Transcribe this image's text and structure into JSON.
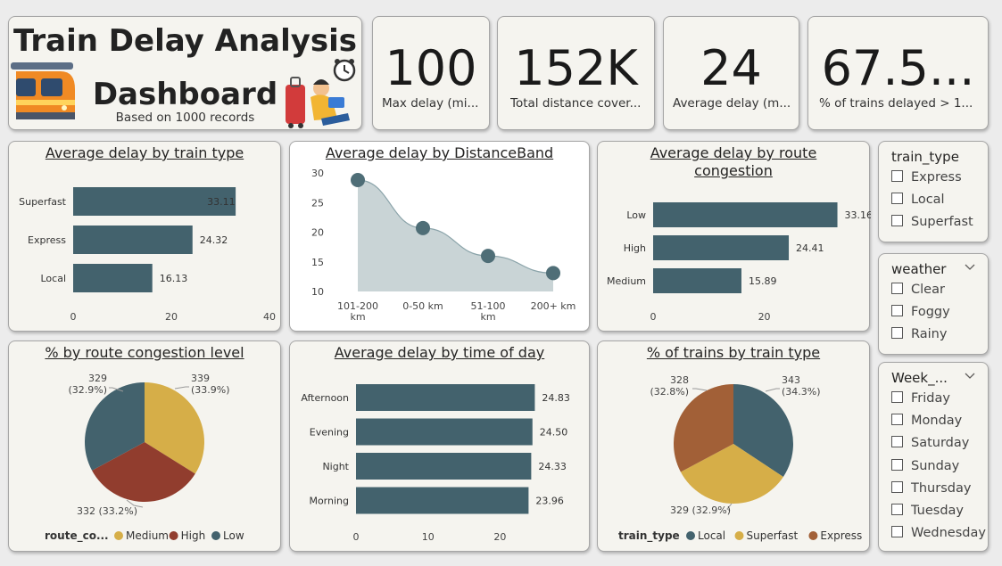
{
  "header": {
    "title": "Train Delay Analysis Dashboard",
    "title_line1": "Train Delay Analysis",
    "title_line2": "Dashboard",
    "subtitle": "Based on 1000 records"
  },
  "kpis": [
    {
      "value": "100",
      "label": "Max delay (mi..."
    },
    {
      "value": "152K",
      "label": "Total distance cover..."
    },
    {
      "value": "24",
      "label": "Average delay (m..."
    },
    {
      "value": "67.5...",
      "label": "% of trains delayed > 1..."
    }
  ],
  "colors": {
    "bar": "#43626d",
    "area": "#c6d2d4",
    "medium": "#d6ae48",
    "high": "#913d2e",
    "low": "#43626d",
    "express": "#a26037",
    "superfast": "#d6ae48",
    "local": "#43626d"
  },
  "chart_data": [
    {
      "id": "delay_by_train_type",
      "type": "bar",
      "orientation": "horizontal",
      "title": "Average delay by train type",
      "categories": [
        "Superfast",
        "Express",
        "Local"
      ],
      "values": [
        33.11,
        24.32,
        16.13
      ],
      "value_labels": [
        "33.11",
        "24.32",
        "16.13"
      ],
      "xlim": [
        0,
        40
      ],
      "xticks": [
        0,
        20,
        40
      ],
      "grid": false
    },
    {
      "id": "delay_by_distance_band",
      "type": "area",
      "title": "Average delay by DistanceBand",
      "categories": [
        "101-200 km",
        "0-50 km",
        "51-100 km",
        "200+ km"
      ],
      "values": [
        28.8,
        20.7,
        16.0,
        13.1
      ],
      "ylim": [
        10,
        30
      ],
      "yticks": [
        10,
        15,
        20,
        25,
        30
      ],
      "grid": false
    },
    {
      "id": "delay_by_route_congestion",
      "type": "bar",
      "orientation": "horizontal",
      "title": "Average delay by route congestion",
      "title_lines": [
        "Average delay by route",
        "congestion"
      ],
      "categories": [
        "Low",
        "High",
        "Medium"
      ],
      "values": [
        33.16,
        24.41,
        15.89
      ],
      "value_labels": [
        "33.16",
        "24.41",
        "15.89"
      ],
      "xlim": [
        0,
        35
      ],
      "xticks": [
        0,
        20
      ],
      "grid": false
    },
    {
      "id": "pct_by_congestion",
      "type": "pie",
      "title": "% by route congestion level",
      "legend_title": "route_co...",
      "legend_position": "bottom",
      "slices": [
        {
          "name": "Medium",
          "value": 339,
          "label": "339",
          "pct": "(33.9%)"
        },
        {
          "name": "High",
          "value": 332,
          "label": "332 (33.2%)",
          "pct": ""
        },
        {
          "name": "Low",
          "value": 329,
          "label": "329",
          "pct": "(32.9%)"
        }
      ]
    },
    {
      "id": "delay_by_time_of_day",
      "type": "bar",
      "orientation": "horizontal",
      "title": "Average delay by time of day",
      "categories": [
        "Afternoon",
        "Evening",
        "Night",
        "Morning"
      ],
      "values": [
        24.83,
        24.5,
        24.33,
        23.96
      ],
      "value_labels": [
        "24.83",
        "24.50",
        "24.33",
        "23.96"
      ],
      "xlim": [
        0,
        28
      ],
      "xticks": [
        0,
        10,
        20
      ],
      "grid": false
    },
    {
      "id": "pct_by_train_type",
      "type": "pie",
      "title": "% of trains by train type",
      "legend_title": "train_type",
      "legend_position": "bottom",
      "slices": [
        {
          "name": "Local",
          "value": 343,
          "label": "343",
          "pct": "(34.3%)"
        },
        {
          "name": "Superfast",
          "value": 329,
          "label": "329 (32.9%)",
          "pct": ""
        },
        {
          "name": "Express",
          "value": 328,
          "label": "328",
          "pct": "(32.8%)"
        }
      ]
    }
  ],
  "slicers": [
    {
      "title": "train_type",
      "chevron": false,
      "items": [
        "Express",
        "Local",
        "Superfast"
      ]
    },
    {
      "title": "weather",
      "chevron": true,
      "items": [
        "Clear",
        "Foggy",
        "Rainy"
      ]
    },
    {
      "title": "Week_...",
      "chevron": true,
      "items": [
        "Friday",
        "Monday",
        "Saturday",
        "Sunday",
        "Thursday",
        "Tuesday",
        "Wednesday"
      ]
    }
  ]
}
